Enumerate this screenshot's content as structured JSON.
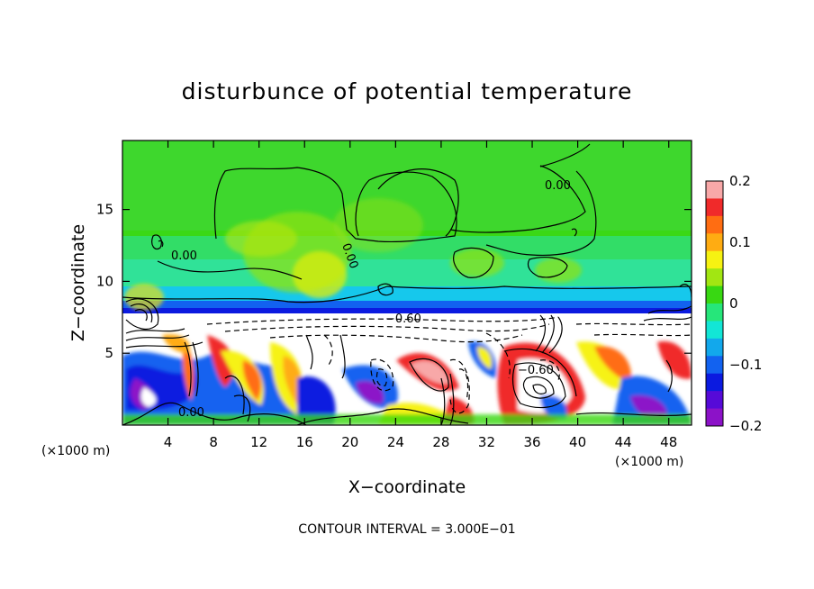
{
  "chart_data": {
    "type": "heatmap",
    "title": "disturbunce of potential temperature",
    "xlabel": "X−coordinate",
    "ylabel": "Z−coordinate",
    "x_unit_left": "(×1000 m)",
    "x_unit_right": "(×1000 m)",
    "footer": "CONTOUR INTERVAL = 3.000E−01",
    "xlim": [
      0,
      50
    ],
    "ylim": [
      0,
      19.8
    ],
    "x_ticks": [
      "4",
      "8",
      "12",
      "16",
      "20",
      "24",
      "28",
      "32",
      "36",
      "40",
      "44",
      "48"
    ],
    "x_tick_values": [
      4,
      8,
      12,
      16,
      20,
      24,
      28,
      32,
      36,
      40,
      44,
      48
    ],
    "y_ticks": [
      "5",
      "10",
      "15"
    ],
    "y_tick_values": [
      5,
      10,
      15
    ],
    "colorbar": {
      "range": [
        -0.2,
        0.2
      ],
      "ticks": [
        "0.2",
        "0.1",
        "0",
        "−0.1",
        "−0.2"
      ],
      "tick_values": [
        0.2,
        0.1,
        0,
        -0.1,
        -0.2
      ],
      "colors": [
        "#f8a8a8",
        "#f02a2a",
        "#ff6d12",
        "#ffac12",
        "#f6f212",
        "#a2e612",
        "#38d812",
        "#26e67a",
        "#12e6d6",
        "#12a8ec",
        "#1262f0",
        "#0b1ae0",
        "#560ad8",
        "#8c12c8"
      ]
    },
    "contour_labels": [
      {
        "text": "0.00",
        "x": 36.2,
        "y": 16.6
      },
      {
        "text": "0.00",
        "x": 4.5,
        "y": 12.0
      },
      {
        "text": "0.00",
        "x": 19.5,
        "y": 12.0
      },
      {
        "text": "−0.60",
        "x": 24.9,
        "y": 7.5
      },
      {
        "text": "−0.60",
        "x": 36.6,
        "y": 3.8
      },
      {
        "text": "0.00",
        "x": 6.2,
        "y": 0.9
      }
    ]
  }
}
